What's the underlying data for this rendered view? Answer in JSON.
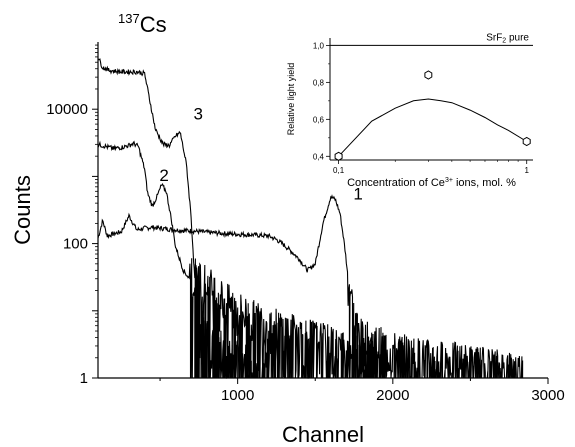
{
  "chart_data": [
    {
      "type": "line",
      "title_main": "Cs",
      "title_sup": "137",
      "xlabel": "Channel",
      "ylabel": "Counts",
      "xlim": [
        100,
        3000
      ],
      "ylim": [
        1,
        100000
      ],
      "yscale": "log",
      "x_ticks": [
        {
          "value": 1000,
          "label": "1000"
        },
        {
          "value": 2000,
          "label": "2000"
        },
        {
          "value": 3000,
          "label": "3000"
        }
      ],
      "y_ticks": [
        {
          "value": 1,
          "label": "1"
        },
        {
          "value": 100,
          "label": "100"
        },
        {
          "value": 10000,
          "label": "10000"
        }
      ],
      "series": [
        {
          "name": "1",
          "points": [
            [
              100,
              120
            ],
            [
              130,
              220
            ],
            [
              160,
              130
            ],
            [
              200,
              140
            ],
            [
              250,
              150
            ],
            [
              300,
              260
            ],
            [
              350,
              160
            ],
            [
              400,
              170
            ],
            [
              450,
              175
            ],
            [
              500,
              170
            ],
            [
              600,
              160
            ],
            [
              700,
              155
            ],
            [
              800,
              148
            ],
            [
              900,
              142
            ],
            [
              1000,
              138
            ],
            [
              1100,
              135
            ],
            [
              1200,
              130
            ],
            [
              1250,
              115
            ],
            [
              1300,
              95
            ],
            [
              1350,
              75
            ],
            [
              1400,
              58
            ],
            [
              1450,
              40
            ],
            [
              1500,
              50
            ],
            [
              1550,
              200
            ],
            [
              1600,
              500
            ],
            [
              1630,
              450
            ],
            [
              1660,
              280
            ],
            [
              1690,
              90
            ],
            [
              1720,
              20
            ],
            [
              1750,
              6
            ],
            [
              1800,
              3
            ],
            [
              1900,
              2.5
            ],
            [
              2000,
              2
            ],
            [
              2100,
              1.8
            ],
            [
              2200,
              1.6
            ],
            [
              2300,
              1.5
            ],
            [
              2400,
              1.4
            ],
            [
              2500,
              1.3
            ],
            [
              2600,
              1.2
            ],
            [
              2700,
              1.1
            ],
            [
              2850,
              1
            ]
          ]
        },
        {
          "name": "2",
          "points": [
            [
              100,
              3000
            ],
            [
              150,
              2800
            ],
            [
              200,
              2600
            ],
            [
              250,
              2700
            ],
            [
              300,
              2900
            ],
            [
              330,
              3100
            ],
            [
              360,
              2800
            ],
            [
              400,
              1300
            ],
            [
              420,
              560
            ],
            [
              450,
              360
            ],
            [
              480,
              500
            ],
            [
              510,
              750
            ],
            [
              540,
              600
            ],
            [
              570,
              250
            ],
            [
              600,
              90
            ],
            [
              650,
              40
            ],
            [
              700,
              28
            ],
            [
              800,
              20
            ],
            [
              900,
              12
            ],
            [
              1000,
              8
            ],
            [
              1100,
              6
            ],
            [
              1200,
              5
            ],
            [
              1300,
              4
            ],
            [
              1400,
              3.5
            ],
            [
              1500,
              3
            ],
            [
              1600,
              2.5
            ],
            [
              1700,
              2
            ],
            [
              1800,
              1.7
            ],
            [
              1900,
              1.5
            ]
          ]
        },
        {
          "name": "3",
          "points": [
            [
              100,
              60000
            ],
            [
              130,
              42000
            ],
            [
              170,
              38000
            ],
            [
              250,
              36000
            ],
            [
              350,
              36000
            ],
            [
              400,
              34000
            ],
            [
              430,
              15000
            ],
            [
              470,
              5000
            ],
            [
              520,
              3000
            ],
            [
              560,
              2900
            ],
            [
              600,
              4000
            ],
            [
              630,
              4500
            ],
            [
              670,
              1500
            ],
            [
              700,
              250
            ],
            [
              720,
              40
            ],
            [
              750,
              6
            ],
            [
              800,
              3
            ],
            [
              900,
              2
            ],
            [
              1000,
              1.5
            ],
            [
              1100,
              1.2
            ],
            [
              1200,
              1
            ]
          ]
        }
      ],
      "annotations": [
        {
          "text": "1",
          "x": 1720,
          "y": 450
        },
        {
          "text": "2",
          "x": 470,
          "y": 860
        },
        {
          "text": "3",
          "x": 690,
          "y": 7000
        }
      ]
    },
    {
      "type": "scatter",
      "xlabel_pre": "Concentration of Ce",
      "xlabel_sup": "3+",
      "xlabel_post": " ions, mol. %",
      "ylabel": "Relative light yield",
      "xscale": "log",
      "xlim": [
        0.09,
        1.08
      ],
      "ylim": [
        0.38,
        1.04
      ],
      "x_ticks": [
        {
          "value": 0.1,
          "label": "0,1"
        },
        {
          "value": 1,
          "label": "1"
        }
      ],
      "y_ticks": [
        {
          "value": 0.4,
          "label": "0,4"
        },
        {
          "value": 0.6,
          "label": "0,6"
        },
        {
          "value": 0.8,
          "label": "0,8"
        },
        {
          "value": 1.0,
          "label": "1,0"
        }
      ],
      "reference": {
        "label_pre": "SrF",
        "label_sub": "2",
        "label_post": " pure",
        "y": 1.0
      },
      "points": [
        [
          0.1,
          0.4
        ],
        [
          0.3,
          0.84
        ],
        [
          1.0,
          0.48
        ]
      ],
      "fit_curve": [
        [
          0.1,
          0.4
        ],
        [
          0.15,
          0.59
        ],
        [
          0.2,
          0.66
        ],
        [
          0.25,
          0.7
        ],
        [
          0.3,
          0.71
        ],
        [
          0.35,
          0.7
        ],
        [
          0.4,
          0.69
        ],
        [
          0.5,
          0.65
        ],
        [
          0.6,
          0.61
        ],
        [
          0.7,
          0.57
        ],
        [
          0.8,
          0.54
        ],
        [
          1.0,
          0.48
        ]
      ]
    }
  ]
}
